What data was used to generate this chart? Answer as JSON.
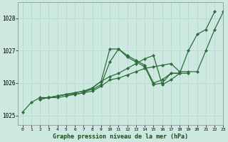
{
  "background_color": "#cce8e0",
  "grid_color": "#b0d8cc",
  "line_color": "#2d6e3a",
  "title": "Graphe pression niveau de la mer (hPa)",
  "xlim": [
    -0.5,
    23
  ],
  "ylim": [
    1024.7,
    1028.5
  ],
  "yticks": [
    1025,
    1026,
    1027,
    1028
  ],
  "xticks": [
    0,
    1,
    2,
    3,
    4,
    5,
    6,
    7,
    8,
    9,
    10,
    11,
    12,
    13,
    14,
    15,
    16,
    17,
    18,
    19,
    20,
    21,
    22,
    23
  ],
  "series": [
    {
      "x": [
        0,
        1,
        2,
        3,
        4,
        5,
        6,
        7,
        8,
        9,
        10,
        11,
        12,
        13,
        14,
        15,
        16,
        17,
        18,
        19,
        20,
        21,
        22,
        23
      ],
      "y": [
        1025.1,
        1025.4,
        1025.55,
        1025.55,
        1025.55,
        1025.6,
        1025.65,
        1025.7,
        1025.85,
        1026.05,
        1027.05,
        1027.05,
        1026.85,
        1026.7,
        1026.55,
        1026.0,
        1026.1,
        1026.3,
        1026.3,
        1027.0,
        1027.5,
        1027.65,
        1028.2,
        null
      ]
    },
    {
      "x": [
        0,
        1,
        2,
        3,
        4,
        5,
        6,
        7,
        8,
        9,
        10,
        11,
        12,
        13,
        14,
        15,
        16,
        17,
        18,
        19,
        20,
        21,
        22,
        23
      ],
      "y": [
        null,
        null,
        1025.5,
        1025.55,
        1025.6,
        1025.65,
        1025.7,
        1025.75,
        1025.8,
        1025.95,
        1026.65,
        1027.05,
        1026.8,
        1026.65,
        1026.5,
        1025.95,
        1026.0,
        1026.3,
        1026.3,
        null,
        null,
        null,
        null,
        null
      ]
    },
    {
      "x": [
        0,
        1,
        2,
        3,
        4,
        5,
        6,
        7,
        8,
        9,
        10,
        11,
        12,
        13,
        14,
        15,
        16,
        17,
        18,
        19,
        20,
        21,
        22,
        23
      ],
      "y": [
        null,
        null,
        1025.5,
        1025.55,
        1025.6,
        1025.65,
        1025.7,
        1025.75,
        1025.85,
        1026.05,
        1026.2,
        1026.3,
        1026.45,
        1026.6,
        1026.75,
        1026.85,
        1025.95,
        1026.1,
        1026.3,
        1026.3,
        null,
        null,
        null,
        null
      ]
    },
    {
      "x": [
        0,
        1,
        2,
        3,
        4,
        5,
        6,
        7,
        8,
        9,
        10,
        11,
        12,
        13,
        14,
        15,
        16,
        17,
        18,
        19,
        20,
        21,
        22,
        23
      ],
      "y": [
        null,
        null,
        null,
        1025.55,
        1025.6,
        1025.65,
        1025.65,
        1025.7,
        1025.75,
        1025.9,
        1026.1,
        1026.15,
        1026.25,
        1026.35,
        1026.45,
        1026.5,
        1026.55,
        1026.6,
        1026.35,
        1026.35,
        1026.35,
        1027.0,
        1027.65,
        1028.2
      ]
    }
  ]
}
